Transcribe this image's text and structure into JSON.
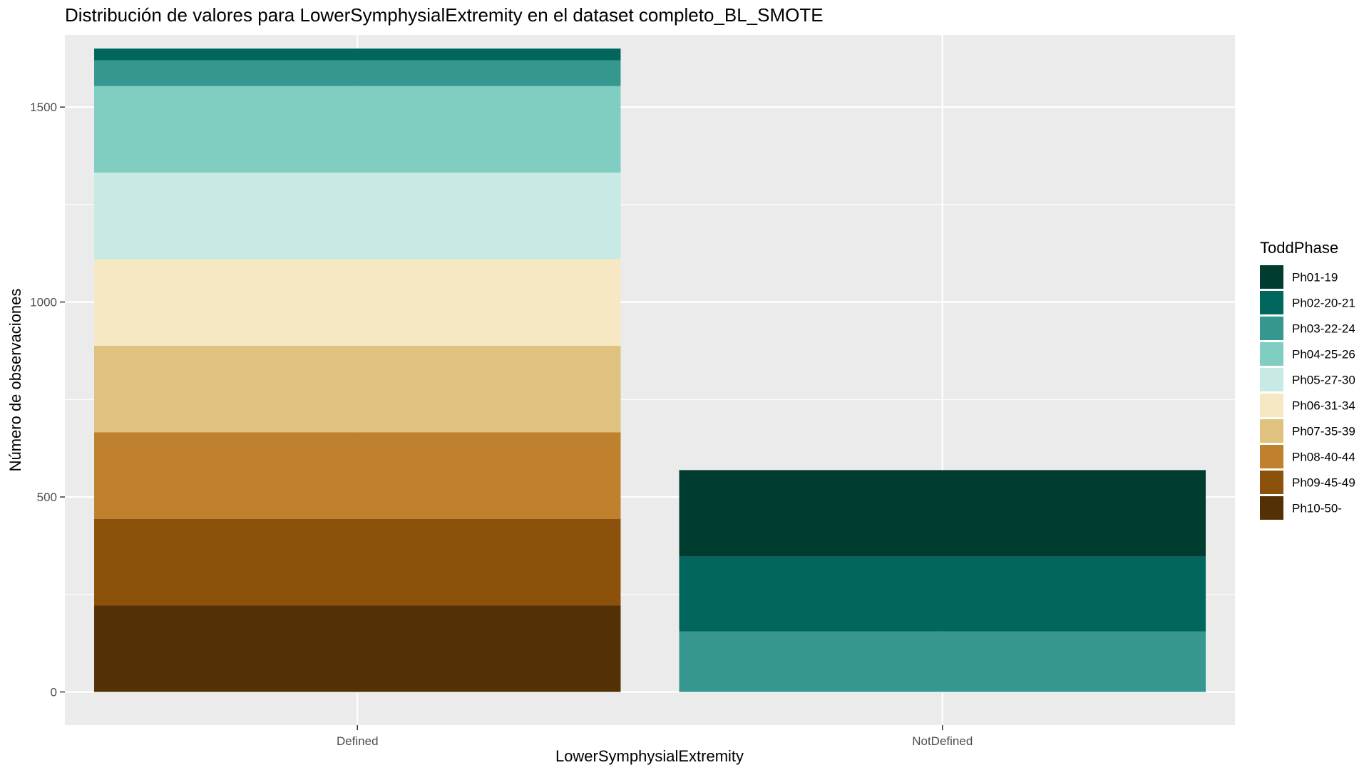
{
  "chart_data": {
    "type": "bar",
    "stacked": true,
    "title": "Distribución de valores para LowerSymphysialExtremity en el dataset completo_BL_SMOTE",
    "xlabel": "LowerSymphysialExtremity",
    "ylabel": "Número de observaciones",
    "categories": [
      "Defined",
      "NotDefined"
    ],
    "ylim": [
      -85,
      1685
    ],
    "yticks": [
      0,
      500,
      1000,
      1500
    ],
    "grid": true,
    "legend": {
      "title": "ToddPhase",
      "placement": "right"
    },
    "series": [
      {
        "name": "Ph01-19",
        "color": "#003C30",
        "values": [
          0,
          222
        ]
      },
      {
        "name": "Ph02-20-21",
        "color": "#01665E",
        "values": [
          30,
          192
        ]
      },
      {
        "name": "Ph03-22-24",
        "color": "#35978F",
        "values": [
          66,
          155
        ]
      },
      {
        "name": "Ph04-25-26",
        "color": "#80CDC1",
        "values": [
          222,
          0
        ]
      },
      {
        "name": "Ph05-27-30",
        "color": "#C7EAE5",
        "values": [
          222,
          0
        ]
      },
      {
        "name": "Ph06-31-34",
        "color": "#F6E8C3",
        "values": [
          222,
          0
        ]
      },
      {
        "name": "Ph07-35-39",
        "color": "#DFC27D",
        "values": [
          222,
          0
        ]
      },
      {
        "name": "Ph08-40-44",
        "color": "#BF812D",
        "values": [
          222,
          0
        ]
      },
      {
        "name": "Ph09-45-49",
        "color": "#8C510A",
        "values": [
          222,
          0
        ]
      },
      {
        "name": "Ph10-50-",
        "color": "#543005",
        "values": [
          222,
          0
        ]
      }
    ],
    "panel_background": "#EBEBEB",
    "grid_color": "#FFFFFF"
  }
}
